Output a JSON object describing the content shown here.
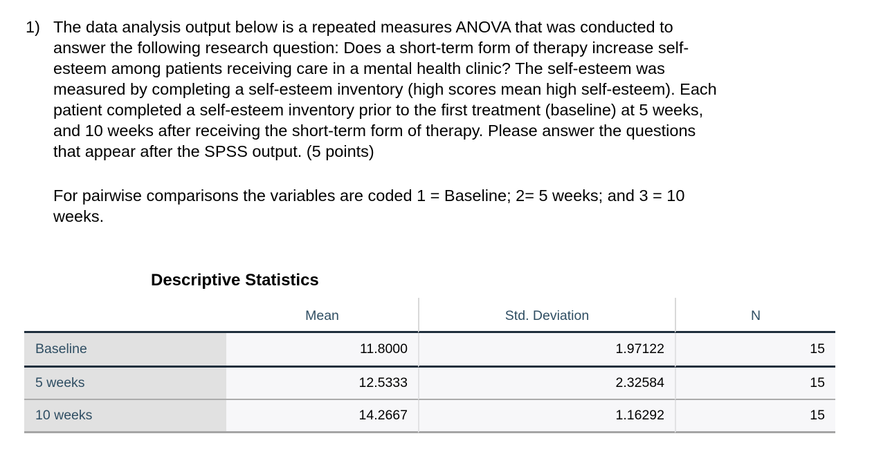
{
  "question": {
    "number": "1)",
    "paragraph1": "The data analysis output below is a repeated measures ANOVA that was conducted to\nanswer the following research question: Does a short-term form of therapy increase self-\nesteem among patients receiving care in a mental health clinic? The self-esteem was\nmeasured by completing a self-esteem inventory (high scores mean high self-esteem). Each\npatient completed a self-esteem inventory prior to the first treatment (baseline) at 5 weeks,\nand 10 weeks after receiving the short-term form of therapy. Please answer the questions\nthat appear after the SPSS output. (5 points)",
    "paragraph2": "For pairwise comparisons the variables are coded 1 = Baseline; 2= 5 weeks; and 3 = 10\nweeks."
  },
  "table": {
    "title": "Descriptive Statistics",
    "columns": [
      "Mean",
      "Std. Deviation",
      "N"
    ],
    "rows": [
      {
        "label": "Baseline",
        "mean": "11.8000",
        "std_deviation": "1.97122",
        "n": "15"
      },
      {
        "label": "5 weeks",
        "mean": "12.5333",
        "std_deviation": "2.32584",
        "n": "15"
      },
      {
        "label": "10 weeks",
        "mean": "14.2667",
        "std_deviation": "1.16292",
        "n": "15"
      }
    ]
  },
  "colors": {
    "table_text_accent": "#2f4e63",
    "dark_border": "#1f2f3d",
    "light_border": "#ababab",
    "row_label_background": "#e1e1e1",
    "data_cell_background": "#f7f7f9",
    "page_background": "#ffffff"
  }
}
